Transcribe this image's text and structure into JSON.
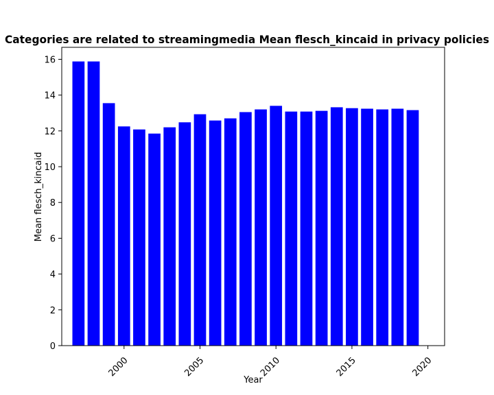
{
  "chart_data": {
    "type": "bar",
    "title": "Categories are related to streamingmedia Mean flesch_kincaid in privacy policies",
    "xlabel": "Year",
    "ylabel": "Mean flesch_kincaid",
    "x": [
      1997,
      1998,
      1999,
      2000,
      2001,
      2002,
      2003,
      2004,
      2005,
      2006,
      2007,
      2008,
      2009,
      2010,
      2011,
      2012,
      2013,
      2014,
      2015,
      2016,
      2017,
      2018,
      2019
    ],
    "values": [
      15.88,
      15.88,
      13.55,
      12.25,
      12.08,
      11.85,
      12.2,
      12.48,
      12.93,
      12.58,
      12.7,
      13.05,
      13.2,
      13.4,
      13.08,
      13.08,
      13.12,
      13.32,
      13.27,
      13.24,
      13.2,
      13.24,
      13.16
    ],
    "xticks": [
      2000,
      2005,
      2010,
      2015,
      2020
    ],
    "yticks": [
      0,
      2,
      4,
      6,
      8,
      10,
      12,
      14,
      16
    ],
    "xlim": [
      1995.9,
      2021.1
    ],
    "ylim": [
      0,
      16.67
    ],
    "bar_color": "#0000ff",
    "grid": false,
    "legend": "none"
  }
}
